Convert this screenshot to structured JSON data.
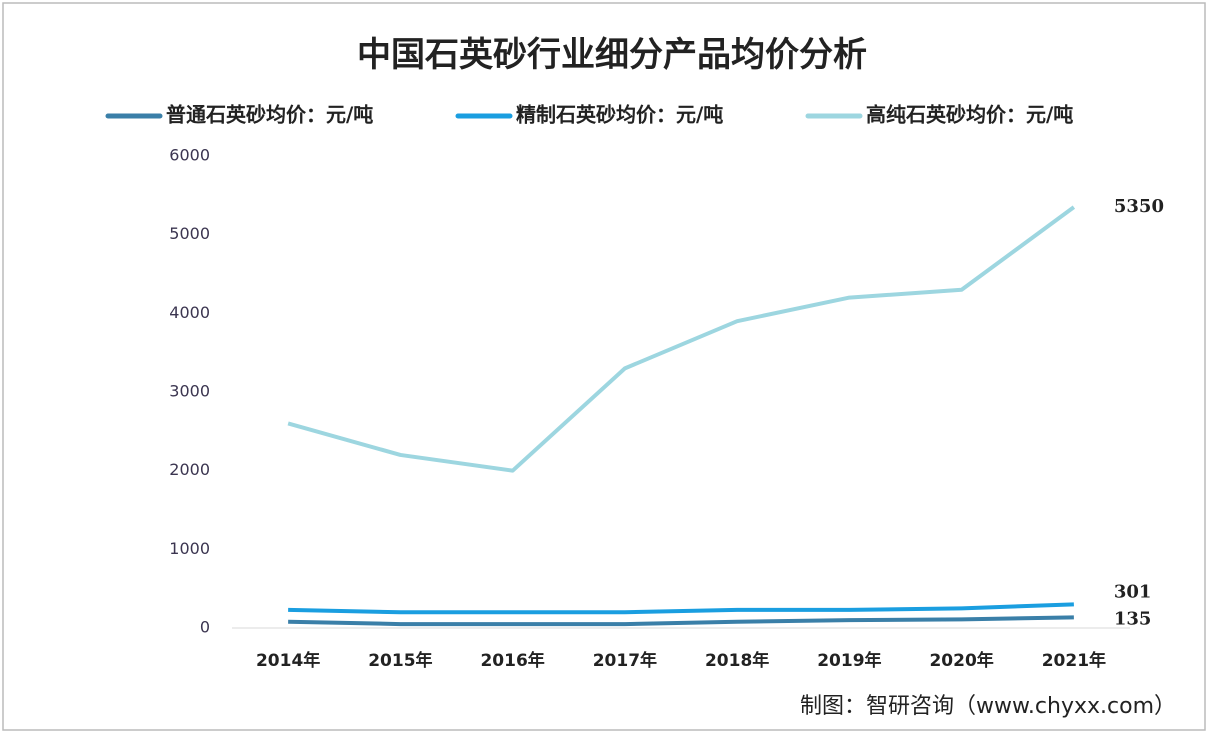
{
  "chart_data": {
    "type": "line",
    "title": "中国石英砂行业细分产品均价分析",
    "categories": [
      "2014年",
      "2015年",
      "2016年",
      "2017年",
      "2018年",
      "2019年",
      "2020年",
      "2021年"
    ],
    "series": [
      {
        "name": "普通石英砂均价：元/吨",
        "color": "#3a7fa8",
        "values": [
          80,
          50,
          50,
          50,
          80,
          100,
          110,
          135
        ]
      },
      {
        "name": "精制石英砂均价：元/吨",
        "color": "#1a9ee0",
        "values": [
          230,
          200,
          200,
          200,
          230,
          230,
          250,
          301
        ]
      },
      {
        "name": "高纯石英砂均价：元/吨",
        "color": "#9dd6e0",
        "values": [
          2600,
          2200,
          2000,
          3300,
          3900,
          4200,
          4300,
          5350
        ]
      }
    ],
    "ylim": [
      0,
      6000
    ],
    "yticks": [
      0,
      1000,
      2000,
      3000,
      4000,
      5000,
      6000
    ],
    "source": "制图：智研咨询（www.chyxx.com）"
  }
}
